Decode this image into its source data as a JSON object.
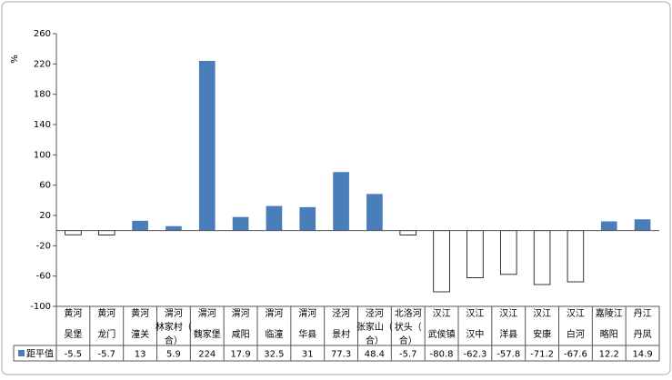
{
  "chart_data": {
    "type": "bar",
    "y_label": "%",
    "categories": [
      [
        "黄河",
        "吴堡"
      ],
      [
        "黄河",
        "龙门"
      ],
      [
        "黄河",
        "潼关"
      ],
      [
        "渭河",
        "林家村（",
        "合）"
      ],
      [
        "渭河",
        "魏家堡"
      ],
      [
        "渭河",
        "咸阳"
      ],
      [
        "渭河",
        "临潼"
      ],
      [
        "渭河",
        "华县"
      ],
      [
        "泾河",
        "景村"
      ],
      [
        "泾河",
        "张家山（",
        "合）"
      ],
      [
        "北洛河",
        "状头（",
        "合）"
      ],
      [
        "汉江",
        "武侯镇"
      ],
      [
        "汉江",
        "汉中"
      ],
      [
        "汉江",
        "洋县"
      ],
      [
        "汉江",
        "安康"
      ],
      [
        "汉江",
        "白河"
      ],
      [
        "嘉陵江",
        "略阳"
      ],
      [
        "丹江",
        "丹凤"
      ]
    ],
    "series": [
      {
        "name": "距平值",
        "color": "#4a7ebb",
        "negative_fill": "#ffffff",
        "values": [
          -5.5,
          -5.7,
          13,
          5.9,
          224,
          17.9,
          32.5,
          31,
          77.3,
          48.4,
          -5.7,
          -80.8,
          -62.3,
          -57.8,
          -71.2,
          -67.6,
          12.2,
          14.9
        ]
      }
    ],
    "ylim": [
      -100,
      260
    ],
    "yticks": [
      -100,
      -60,
      -20,
      20,
      60,
      100,
      140,
      180,
      220,
      260
    ],
    "grid": false
  }
}
